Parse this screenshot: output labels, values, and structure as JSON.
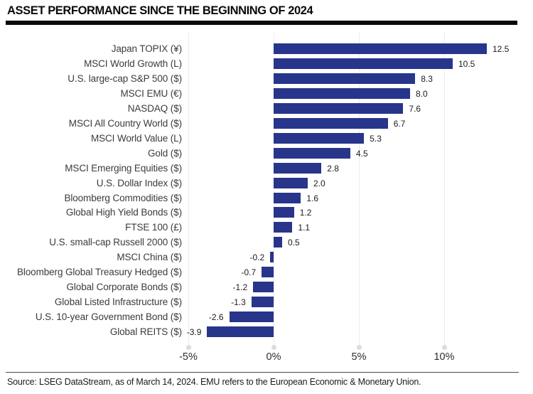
{
  "header": {
    "title": "ASSET PERFORMANCE SINCE THE BEGINNING OF 2024"
  },
  "chart_data": {
    "type": "bar",
    "orientation": "horizontal",
    "title": "ASSET PERFORMANCE SINCE THE BEGINNING OF 2024",
    "categories": [
      "Japan TOPIX (¥)",
      "MSCI World Growth (L)",
      "U.S. large-cap S&P 500 ($)",
      "MSCI EMU (€)",
      "NASDAQ ($)",
      "MSCI All Country World ($)",
      "MSCI World Value (L)",
      "Gold ($)",
      "MSCI Emerging Equities ($)",
      "U.S. Dollar Index ($)",
      "Bloomberg Commodities ($)",
      "Global High Yield Bonds ($)",
      "FTSE 100 (£)",
      "U.S. small-cap Russell 2000 ($)",
      "MSCI China ($)",
      "Bloomberg Global Treasury Hedged ($)",
      "Global Corporate Bonds ($)",
      "Global Listed Infrastructure ($)",
      "U.S. 10-year Government Bond ($)",
      "Global REITS ($)"
    ],
    "values": [
      12.5,
      10.5,
      8.3,
      8.0,
      7.6,
      6.7,
      5.3,
      4.5,
      2.8,
      2.0,
      1.6,
      1.2,
      1.1,
      0.5,
      -0.2,
      -0.7,
      -1.2,
      -1.3,
      -2.6,
      -3.9
    ],
    "x_ticks": [
      "-5%",
      "0%",
      "5%",
      "10%"
    ],
    "x_tick_values": [
      -5,
      0,
      5,
      10
    ],
    "xlim": [
      -5.3,
      15.2
    ],
    "unit": "%",
    "bar_color": "#27358b",
    "grid": true,
    "legend": false
  },
  "footer": {
    "source": "Source: LSEG DataStream, as of March 14, 2024. EMU refers to the European Economic & Monetary Union."
  }
}
